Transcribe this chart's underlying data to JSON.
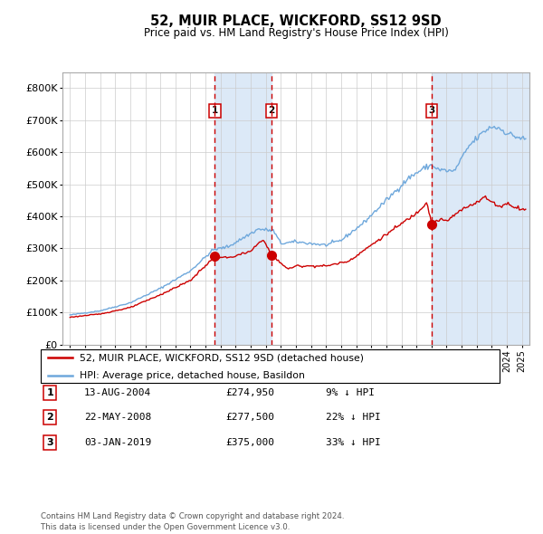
{
  "title": "52, MUIR PLACE, WICKFORD, SS12 9SD",
  "subtitle": "Price paid vs. HM Land Registry's House Price Index (HPI)",
  "legend_line1": "52, MUIR PLACE, WICKFORD, SS12 9SD (detached house)",
  "legend_line2": "HPI: Average price, detached house, Basildon",
  "hpi_color": "#6fa8dc",
  "property_color": "#cc0000",
  "sale_color": "#cc0000",
  "vline_color": "#cc0000",
  "shade_color": "#dce9f7",
  "grid_color": "#cccccc",
  "bg_color": "#ffffff",
  "transactions": [
    {
      "date": 2004.62,
      "price": 274950,
      "label": "1"
    },
    {
      "date": 2008.39,
      "price": 277500,
      "label": "2"
    },
    {
      "date": 2019.01,
      "price": 375000,
      "label": "3"
    }
  ],
  "transaction_table": [
    {
      "num": "1",
      "date": "13-AUG-2004",
      "price": "£274,950",
      "note": "9% ↓ HPI"
    },
    {
      "num": "2",
      "date": "22-MAY-2008",
      "price": "£277,500",
      "note": "22% ↓ HPI"
    },
    {
      "num": "3",
      "date": "03-JAN-2019",
      "price": "£375,000",
      "note": "33% ↓ HPI"
    }
  ],
  "footer": "Contains HM Land Registry data © Crown copyright and database right 2024.\nThis data is licensed under the Open Government Licence v3.0.",
  "ylim": [
    0,
    850000
  ],
  "yticks": [
    0,
    100000,
    200000,
    300000,
    400000,
    500000,
    600000,
    700000,
    800000
  ],
  "ytick_labels": [
    "£0",
    "£100K",
    "£200K",
    "£300K",
    "£400K",
    "£500K",
    "£600K",
    "£700K",
    "£800K"
  ],
  "xlim_start": 1994.5,
  "xlim_end": 2025.5
}
